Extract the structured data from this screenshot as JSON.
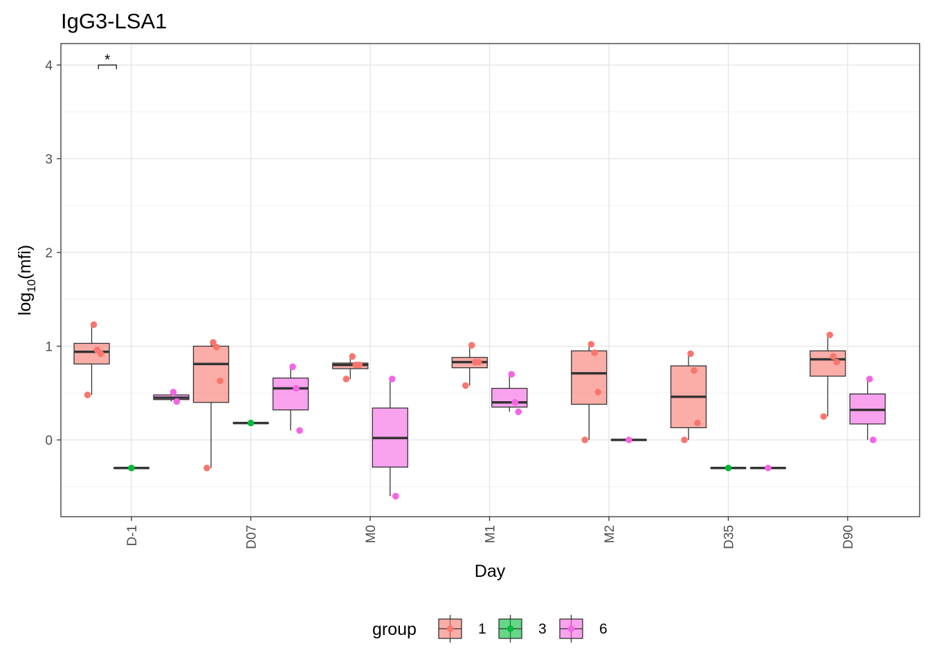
{
  "chart_data": {
    "type": "box",
    "title": "IgG3-LSA1",
    "xlabel": "Day",
    "ylabel_base": "log",
    "ylabel_sub": "10",
    "ylabel_arg": "(mfi)",
    "ylim": [
      -0.82,
      4.23
    ],
    "yticks": [
      0,
      1,
      2,
      3,
      4
    ],
    "grid": true,
    "categories": [
      "D-1",
      "D07",
      "M0",
      "M1",
      "M2",
      "D35",
      "D90"
    ],
    "legend": {
      "title": "group",
      "position": "bottom",
      "items": [
        {
          "label": "1",
          "fill": "#F8766D",
          "point": "#F8766D"
        },
        {
          "label": "3",
          "fill": "#00BA38",
          "point": "#00BA38"
        },
        {
          "label": "6",
          "fill": "#F564E3",
          "point": "#F564E3"
        }
      ]
    },
    "boxes": [
      {
        "category": "D-1",
        "group": "1",
        "min": 0.48,
        "q1": 0.81,
        "median": 0.94,
        "q3": 1.03,
        "max": 1.23
      },
      {
        "category": "D-1",
        "group": "3",
        "min": -0.3,
        "q1": -0.3,
        "median": -0.3,
        "q3": -0.3,
        "max": -0.3
      },
      {
        "category": "D-1",
        "group": "6",
        "min": 0.41,
        "q1": 0.43,
        "median": 0.45,
        "q3": 0.48,
        "max": 0.51
      },
      {
        "category": "D07",
        "group": "1",
        "min": -0.3,
        "q1": 0.4,
        "median": 0.81,
        "q3": 1.0,
        "max": 1.04
      },
      {
        "category": "D07",
        "group": "3",
        "min": 0.18,
        "q1": 0.18,
        "median": 0.18,
        "q3": 0.18,
        "max": 0.18
      },
      {
        "category": "D07",
        "group": "6",
        "min": 0.1,
        "q1": 0.32,
        "median": 0.55,
        "q3": 0.66,
        "max": 0.78
      },
      {
        "category": "M0",
        "group": "1",
        "min": 0.65,
        "q1": 0.76,
        "median": 0.8,
        "q3": 0.82,
        "max": 0.89
      },
      {
        "category": "M0",
        "group": "6",
        "min": -0.6,
        "q1": -0.29,
        "median": 0.02,
        "q3": 0.34,
        "max": 0.65
      },
      {
        "category": "M1",
        "group": "1",
        "min": 0.58,
        "q1": 0.77,
        "median": 0.83,
        "q3": 0.88,
        "max": 1.01
      },
      {
        "category": "M1",
        "group": "6",
        "min": 0.3,
        "q1": 0.35,
        "median": 0.4,
        "q3": 0.55,
        "max": 0.7
      },
      {
        "category": "M2",
        "group": "1",
        "min": 0.0,
        "q1": 0.38,
        "median": 0.71,
        "q3": 0.95,
        "max": 1.02
      },
      {
        "category": "M2",
        "group": "6",
        "min": 0.0,
        "q1": 0.0,
        "median": 0.0,
        "q3": 0.0,
        "max": 0.0
      },
      {
        "category": "D35",
        "group": "1",
        "min": 0.0,
        "q1": 0.13,
        "median": 0.46,
        "q3": 0.79,
        "max": 0.92
      },
      {
        "category": "D35",
        "group": "3",
        "min": -0.3,
        "q1": -0.3,
        "median": -0.3,
        "q3": -0.3,
        "max": -0.3
      },
      {
        "category": "D35",
        "group": "6",
        "min": -0.3,
        "q1": -0.3,
        "median": -0.3,
        "q3": -0.3,
        "max": -0.3
      },
      {
        "category": "D90",
        "group": "1",
        "min": 0.25,
        "q1": 0.68,
        "median": 0.86,
        "q3": 0.95,
        "max": 1.12
      },
      {
        "category": "D90",
        "group": "6",
        "min": 0.0,
        "q1": 0.17,
        "median": 0.32,
        "q3": 0.49,
        "max": 0.65
      }
    ],
    "points": [
      {
        "category": "D-1",
        "group": "1",
        "values": [
          1.23,
          0.96,
          0.92,
          0.48
        ]
      },
      {
        "category": "D-1",
        "group": "3",
        "values": [
          -0.3
        ]
      },
      {
        "category": "D-1",
        "group": "6",
        "values": [
          0.51,
          0.41
        ]
      },
      {
        "category": "D07",
        "group": "1",
        "values": [
          1.04,
          0.99,
          0.63,
          -0.3
        ]
      },
      {
        "category": "D07",
        "group": "3",
        "values": [
          0.18
        ]
      },
      {
        "category": "D07",
        "group": "6",
        "values": [
          0.78,
          0.55,
          0.1
        ]
      },
      {
        "category": "M0",
        "group": "1",
        "values": [
          0.89,
          0.8,
          0.8,
          0.65
        ]
      },
      {
        "category": "M0",
        "group": "6",
        "values": [
          0.65,
          -0.6
        ]
      },
      {
        "category": "M1",
        "group": "1",
        "values": [
          1.01,
          0.83,
          0.83,
          0.58
        ]
      },
      {
        "category": "M1",
        "group": "6",
        "values": [
          0.7,
          0.4,
          0.3
        ]
      },
      {
        "category": "M2",
        "group": "1",
        "values": [
          1.02,
          0.93,
          0.51,
          0.0
        ]
      },
      {
        "category": "M2",
        "group": "6",
        "values": [
          0.0
        ]
      },
      {
        "category": "D35",
        "group": "1",
        "values": [
          0.92,
          0.74,
          0.18,
          0.0
        ]
      },
      {
        "category": "D35",
        "group": "3",
        "values": [
          -0.3
        ]
      },
      {
        "category": "D35",
        "group": "6",
        "values": [
          -0.3
        ]
      },
      {
        "category": "D90",
        "group": "1",
        "values": [
          1.12,
          0.89,
          0.83,
          0.25
        ]
      },
      {
        "category": "D90",
        "group": "6",
        "values": [
          0.65,
          0.0
        ]
      }
    ],
    "annotations": [
      {
        "text": "*",
        "category": "D-1",
        "y": 4.0
      }
    ]
  }
}
